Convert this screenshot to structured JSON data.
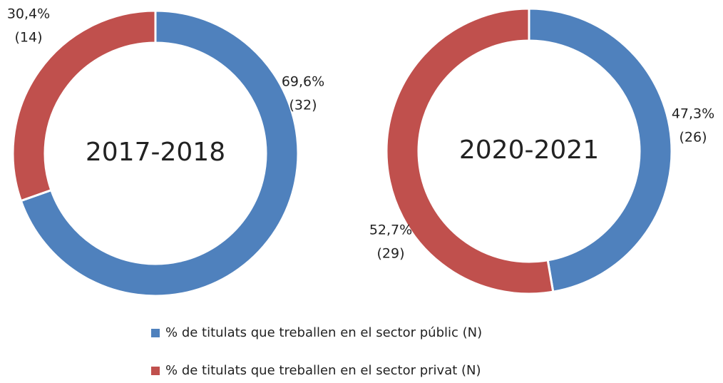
{
  "chart_data": [
    {
      "type": "donut",
      "title": "2017-2018",
      "values": [
        69.6,
        30.4
      ],
      "value_labels": [
        "69,6%",
        "30,4%"
      ],
      "n": [
        32,
        14
      ],
      "n_labels": [
        "(32)",
        "(14)"
      ]
    },
    {
      "type": "donut",
      "title": "2020-2021",
      "values": [
        47.3,
        52.7
      ],
      "value_labels": [
        "47,3%",
        "52,7%"
      ],
      "n": [
        26,
        29
      ],
      "n_labels": [
        "(26)",
        "(29)"
      ]
    }
  ],
  "legend": [
    {
      "name": "% de titulats que treballen en el sector públic (N)",
      "color": "#4f81bd"
    },
    {
      "name": "% de titulats que treballen en el sector privat (N)",
      "color": "#c0504d"
    }
  ]
}
